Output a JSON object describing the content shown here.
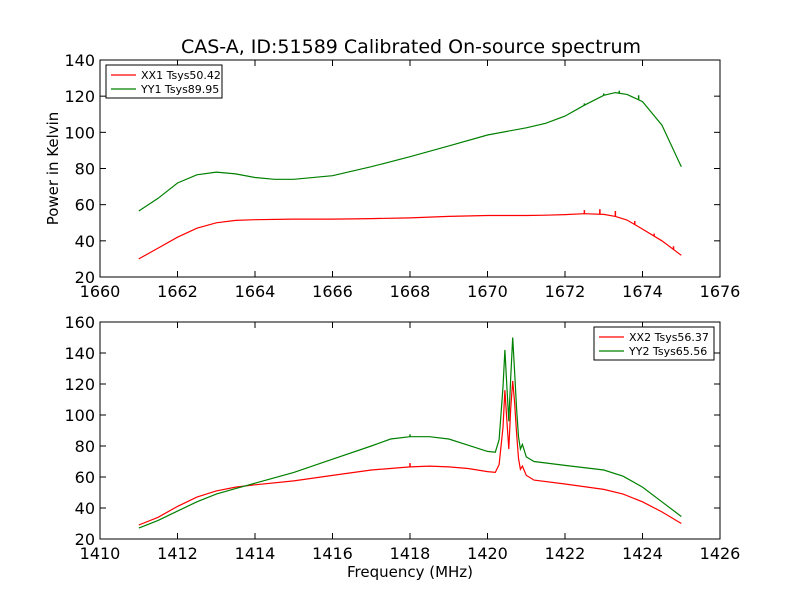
{
  "title": "CAS-A, ID:51589 Calibrated On-source spectrum",
  "chart_data": [
    {
      "type": "line",
      "ylabel": "Power in Kelvin",
      "xlabel": "",
      "xlim": [
        1660,
        1676
      ],
      "ylim": [
        20,
        140
      ],
      "xticks": [
        "1660",
        "1662",
        "1664",
        "1666",
        "1668",
        "1670",
        "1672",
        "1674",
        "1676"
      ],
      "yticks": [
        "20",
        "40",
        "60",
        "80",
        "100",
        "120",
        "140"
      ],
      "legend_placement": "upper-left",
      "series": [
        {
          "name": "XX1 Tsys50.42",
          "color": "#ff0000",
          "x": [
            1661.0,
            1661.5,
            1662.0,
            1662.5,
            1663.0,
            1663.5,
            1664.0,
            1665.0,
            1666.0,
            1667.0,
            1668.0,
            1669.0,
            1670.0,
            1670.5,
            1671.0,
            1671.5,
            1672.0,
            1672.5,
            1673.0,
            1673.3,
            1673.6,
            1674.0,
            1674.5,
            1675.0
          ],
          "y": [
            30,
            36,
            42,
            47,
            50,
            51.3,
            51.7,
            52,
            52,
            52.3,
            52.7,
            53.5,
            54,
            54,
            54,
            54.2,
            54.5,
            55,
            54.6,
            53.5,
            51.5,
            46.5,
            40,
            32
          ],
          "spikes": [
            [
              1672.5,
              57
            ],
            [
              1672.9,
              57.5
            ],
            [
              1673.3,
              56.5
            ],
            [
              1673.8,
              51
            ],
            [
              1674.3,
              44
            ],
            [
              1674.8,
              37
            ]
          ]
        },
        {
          "name": "YY1 Tsys89.95",
          "color": "#008000",
          "x": [
            1661.0,
            1661.5,
            1662.0,
            1662.5,
            1663.0,
            1663.5,
            1664.0,
            1664.5,
            1665.0,
            1666.0,
            1667.0,
            1668.0,
            1669.0,
            1670.0,
            1671.0,
            1671.5,
            1672.0,
            1672.5,
            1673.0,
            1673.3,
            1673.6,
            1674.0,
            1674.5,
            1675.0
          ],
          "y": [
            56.5,
            63.5,
            72,
            76.5,
            78,
            77,
            75,
            74,
            74,
            76,
            81,
            86.5,
            92.5,
            98.5,
            102.5,
            105,
            109,
            115,
            120.5,
            122,
            121,
            117,
            104,
            81
          ],
          "spikes": [
            [
              1672.5,
              116
            ],
            [
              1673.0,
              121.5
            ],
            [
              1673.4,
              123
            ],
            [
              1673.9,
              120.5
            ]
          ]
        }
      ]
    },
    {
      "type": "line",
      "ylabel": "",
      "xlabel": "Frequency (MHz)",
      "xlim": [
        1410,
        1426
      ],
      "ylim": [
        20,
        160
      ],
      "xticks": [
        "1410",
        "1412",
        "1414",
        "1416",
        "1418",
        "1420",
        "1422",
        "1424",
        "1426"
      ],
      "yticks": [
        "20",
        "40",
        "60",
        "80",
        "100",
        "120",
        "140",
        "160"
      ],
      "legend_placement": "upper-right",
      "series": [
        {
          "name": "XX2 Tsys56.37",
          "color": "#ff0000",
          "x": [
            1411.0,
            1411.5,
            1412.0,
            1412.5,
            1413.0,
            1413.5,
            1414.0,
            1415.0,
            1416.0,
            1417.0,
            1418.0,
            1418.5,
            1419.0,
            1419.5,
            1420.0,
            1420.2,
            1420.3,
            1420.4,
            1420.45,
            1420.5,
            1420.55,
            1420.6,
            1420.65,
            1420.7,
            1420.75,
            1420.8,
            1420.85,
            1420.9,
            1421.0,
            1421.2,
            1422.0,
            1423.0,
            1423.5,
            1424.0,
            1424.5,
            1425.0
          ],
          "y": [
            29,
            34,
            41,
            47,
            51,
            53.5,
            55,
            57.5,
            61,
            64.5,
            66.5,
            67,
            66.5,
            65.5,
            63.5,
            63,
            68,
            92,
            116,
            96,
            78,
            104,
            122,
            108,
            88,
            72,
            65,
            67,
            61,
            58,
            55.5,
            52,
            49,
            44,
            37.5,
            30
          ],
          "spikes": [
            [
              1418.0,
              69
            ]
          ]
        },
        {
          "name": "YY2 Tsys65.56",
          "color": "#008000",
          "x": [
            1411.0,
            1411.5,
            1412.0,
            1412.5,
            1413.0,
            1413.5,
            1414.0,
            1415.0,
            1416.0,
            1417.0,
            1417.5,
            1418.0,
            1418.5,
            1419.0,
            1419.5,
            1420.0,
            1420.2,
            1420.3,
            1420.4,
            1420.45,
            1420.5,
            1420.55,
            1420.6,
            1420.65,
            1420.7,
            1420.75,
            1420.8,
            1420.85,
            1420.9,
            1421.0,
            1421.2,
            1422.0,
            1423.0,
            1423.5,
            1424.0,
            1424.5,
            1425.0
          ],
          "y": [
            27,
            32,
            38,
            44,
            49,
            52.5,
            56,
            63,
            71.5,
            80,
            84.5,
            86,
            86,
            84.5,
            80.5,
            76.5,
            76,
            84,
            118,
            142,
            118,
            96,
            124,
            150,
            128,
            104,
            86,
            78,
            81,
            73,
            70,
            67.5,
            64.5,
            60.5,
            53.5,
            44,
            34.5
          ],
          "spikes": [
            [
              1418.0,
              87.5
            ]
          ]
        }
      ]
    }
  ]
}
